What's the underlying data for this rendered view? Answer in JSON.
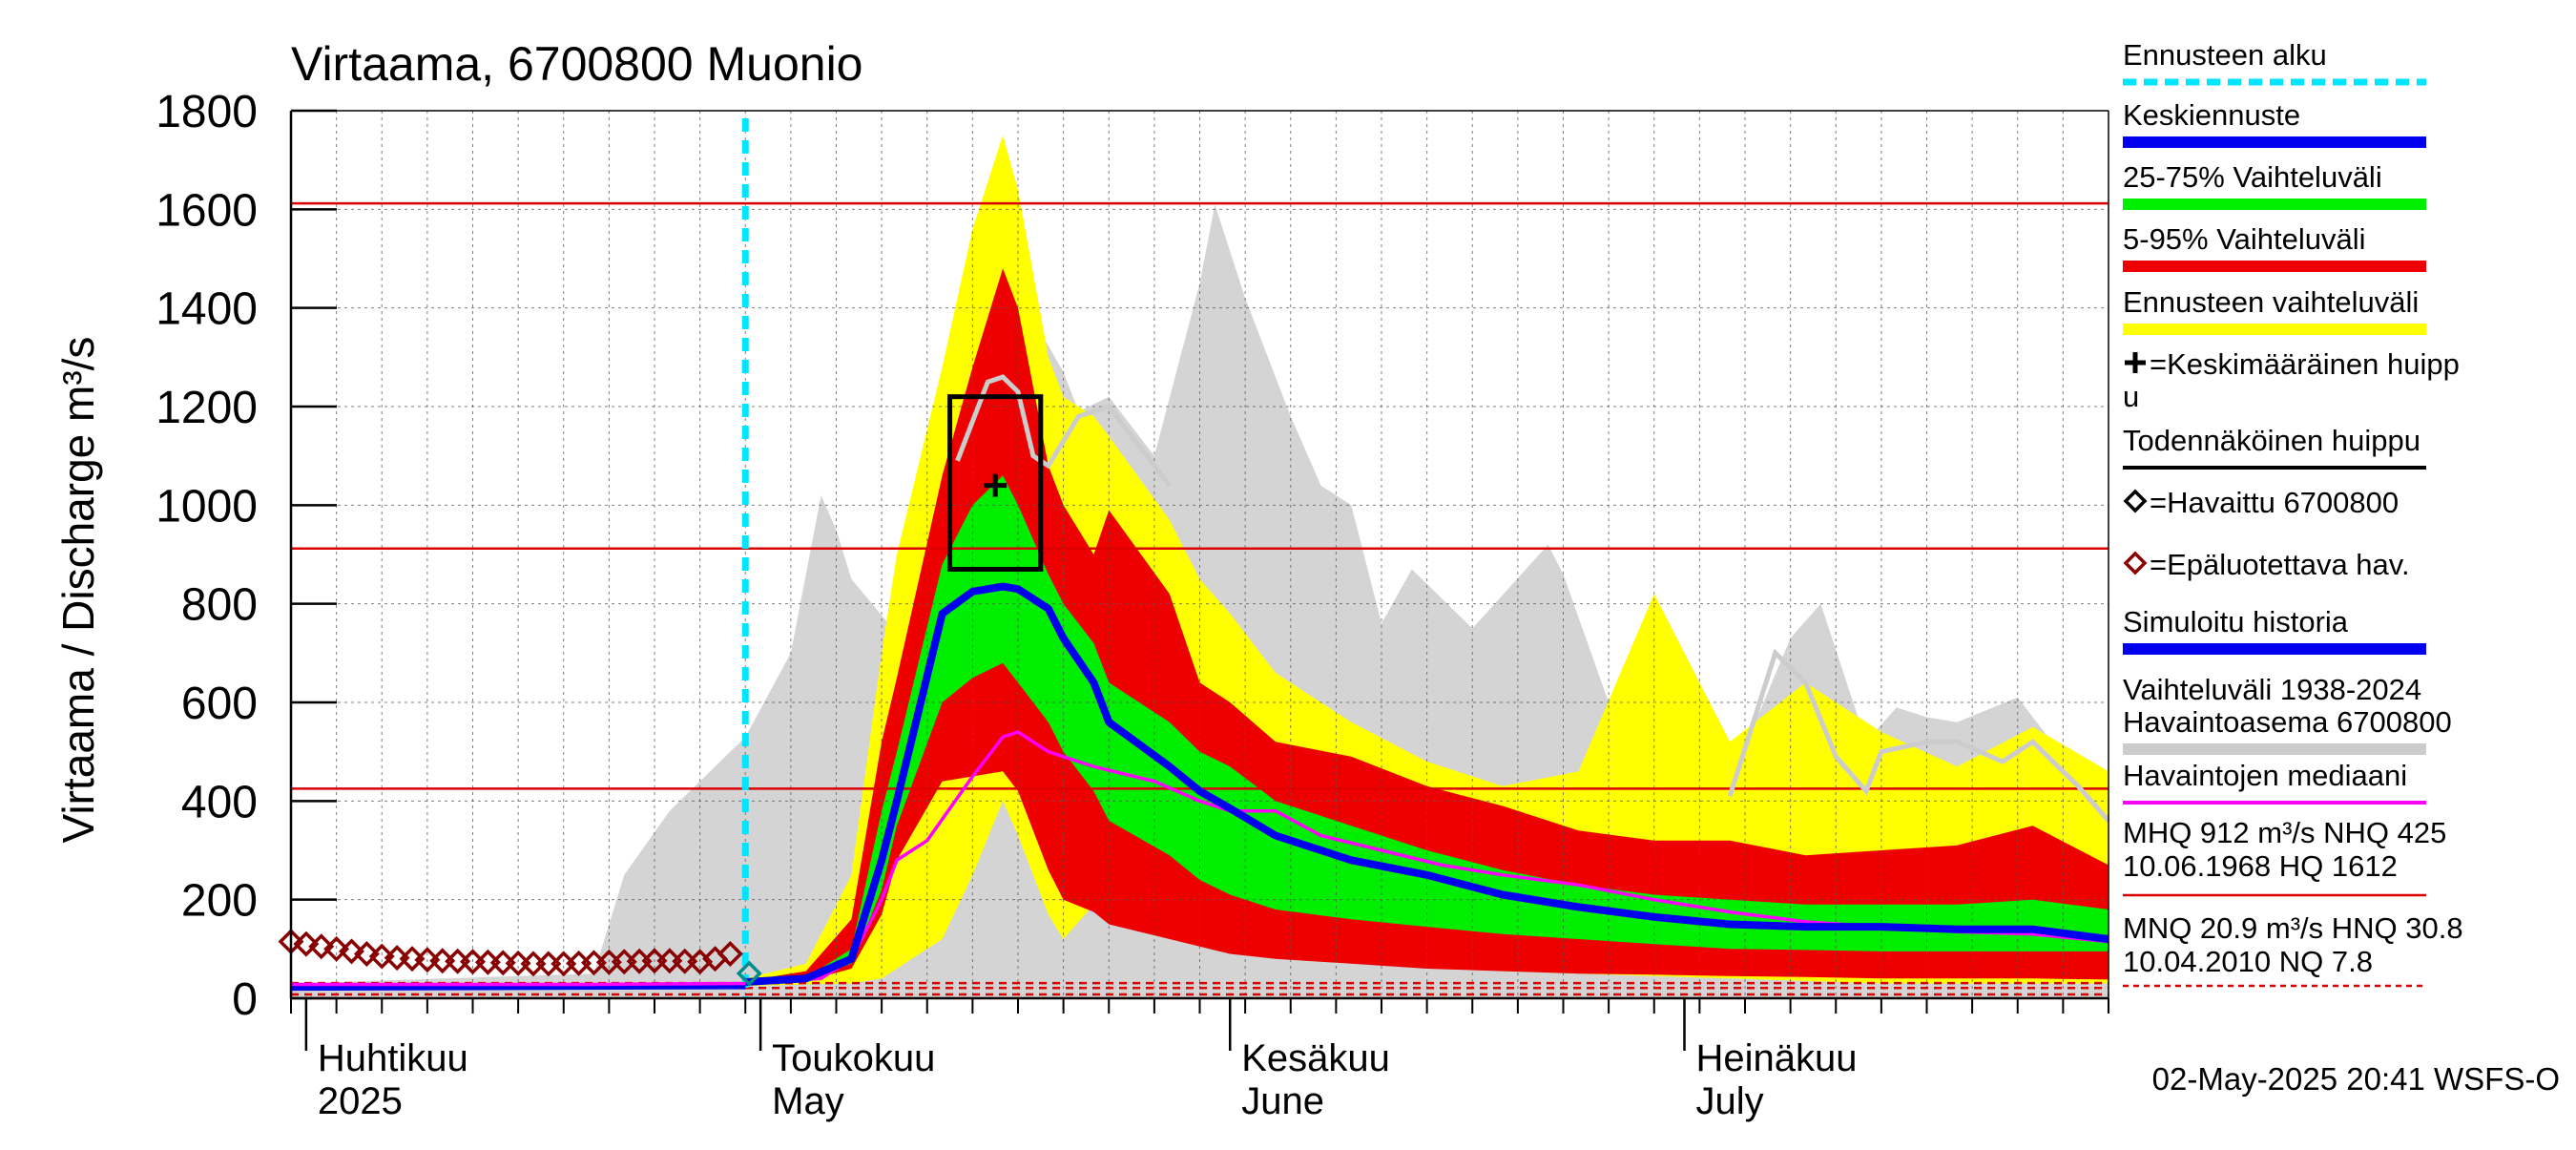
{
  "chart_data": {
    "type": "area",
    "title": "Virtaama, 6700800 Muonio",
    "ylabel": "Virtaama / Discharge   m³/s",
    "ylim": [
      0,
      1800
    ],
    "yticks": [
      0,
      200,
      400,
      600,
      800,
      1000,
      1200,
      1400,
      1600,
      1800
    ],
    "x_unit": "days since 2025-03-31",
    "xlim": [
      0,
      120
    ],
    "month_starts": [
      1,
      31,
      62,
      92
    ],
    "month_labels": [
      {
        "fi": "Huhtikuu",
        "en": "2025"
      },
      {
        "fi": "Toukokuu",
        "en": "May"
      },
      {
        "fi": "Kesäkuu",
        "en": "June"
      },
      {
        "fi": "Heinäkuu",
        "en": "July"
      }
    ],
    "forecast_start": 30,
    "reference_lines": [
      {
        "name": "HQ",
        "value": 1612,
        "color": "#dd0000"
      },
      {
        "name": "MHQ",
        "value": 912,
        "color": "#dd0000"
      },
      {
        "name": "NHQ",
        "value": 425,
        "color": "#dd0000"
      },
      {
        "name": "HNQ",
        "value": 30.8,
        "color": "#dd0000",
        "dashed": true
      },
      {
        "name": "MNQ",
        "value": 20.9,
        "color": "#dd0000",
        "dashed": true
      },
      {
        "name": "NQ",
        "value": 7.8,
        "color": "#dd0000",
        "dashed": true
      }
    ],
    "history_range": {
      "name": "Vaihteluväli 1938-2024 Havaintoasema 6700800",
      "color": "#d4d4d4",
      "x": [
        0,
        20,
        22,
        25,
        27,
        30,
        33,
        35,
        36,
        37,
        40,
        42,
        45,
        47,
        48,
        51,
        52,
        54,
        57,
        60,
        61,
        63,
        66,
        68,
        70,
        72,
        74,
        78,
        83,
        84,
        87,
        90,
        92,
        96,
        99,
        101,
        104,
        106,
        108,
        110,
        114,
        118,
        120
      ],
      "upper": [
        30,
        50,
        250,
        380,
        440,
        530,
        700,
        1020,
        950,
        850,
        740,
        920,
        1210,
        1400,
        1430,
        1270,
        1190,
        1220,
        1100,
        1450,
        1610,
        1420,
        1180,
        1040,
        1000,
        760,
        870,
        750,
        920,
        860,
        600,
        470,
        530,
        510,
        730,
        800,
        520,
        590,
        570,
        560,
        610,
        450,
        380
      ],
      "lower": [
        0,
        0,
        0,
        0,
        0,
        0,
        0,
        0,
        0,
        0,
        0,
        0,
        0,
        0,
        0,
        0,
        0,
        0,
        0,
        0,
        0,
        0,
        0,
        0,
        0,
        0,
        0,
        0,
        0,
        0,
        0,
        0,
        0,
        0,
        0,
        0,
        0,
        0,
        0,
        0,
        0,
        0,
        0
      ]
    },
    "x_fc": [
      30,
      34,
      37,
      39,
      40,
      43,
      45,
      47,
      48,
      50,
      51,
      53,
      54,
      58,
      60,
      62,
      65,
      70,
      75,
      80,
      85,
      90,
      95,
      100,
      105,
      110,
      115,
      120
    ],
    "forecast_range": {
      "name": "Ennusteen vaihteluväli",
      "color": "#ffff00",
      "upper": [
        40,
        70,
        250,
        700,
        900,
        1280,
        1560,
        1750,
        1640,
        1300,
        1220,
        1180,
        1140,
        970,
        850,
        780,
        660,
        560,
        480,
        430,
        460,
        820,
        520,
        640,
        540,
        470,
        550,
        460
      ],
      "lower": [
        25,
        28,
        30,
        40,
        60,
        120,
        250,
        400,
        330,
        170,
        120,
        190,
        160,
        140,
        120,
        100,
        85,
        75,
        65,
        55,
        50,
        45,
        40,
        35,
        30,
        30,
        30,
        30
      ]
    },
    "p5_95": {
      "name": "5-95% Vaihteluväli",
      "color": "#ee0000",
      "upper": [
        35,
        55,
        160,
        520,
        650,
        1060,
        1280,
        1480,
        1400,
        1080,
        1000,
        900,
        990,
        820,
        640,
        600,
        520,
        490,
        430,
        390,
        340,
        320,
        320,
        290,
        300,
        310,
        350,
        270
      ],
      "lower": [
        28,
        35,
        60,
        170,
        280,
        440,
        450,
        460,
        420,
        260,
        200,
        175,
        150,
        120,
        105,
        90,
        80,
        70,
        60,
        55,
        50,
        48,
        45,
        43,
        40,
        40,
        40,
        38
      ]
    },
    "p25_75": {
      "name": "25-75% Vaihteluväli",
      "color": "#00ee00",
      "upper": [
        32,
        42,
        100,
        380,
        500,
        880,
        1000,
        1060,
        1000,
        860,
        800,
        720,
        640,
        560,
        500,
        470,
        400,
        350,
        300,
        260,
        230,
        210,
        200,
        190,
        190,
        190,
        200,
        180
      ],
      "lower": [
        30,
        38,
        70,
        220,
        350,
        600,
        650,
        680,
        640,
        560,
        500,
        420,
        360,
        290,
        240,
        210,
        180,
        160,
        145,
        130,
        120,
        110,
        100,
        98,
        95,
        95,
        95,
        95
      ]
    },
    "median_forecast": {
      "name": "Keskiennuste",
      "color": "#0000ee",
      "values": [
        33,
        40,
        80,
        280,
        400,
        780,
        825,
        835,
        830,
        790,
        730,
        640,
        560,
        470,
        420,
        385,
        330,
        280,
        250,
        210,
        185,
        165,
        150,
        145,
        145,
        140,
        140,
        120
      ]
    },
    "probable_peak_curve": {
      "name": "Todennäköinen huippu",
      "color": "#cccccc",
      "x": [
        44,
        46,
        47,
        48,
        49,
        50,
        52,
        54,
        56,
        58
      ],
      "values": [
        1090,
        1250,
        1260,
        1230,
        1100,
        1080,
        1180,
        1200,
        1120,
        1040
      ]
    },
    "history_light_curve": {
      "name": "",
      "color": "#cccccc",
      "x": [
        95,
        98,
        100,
        102,
        104,
        105,
        108,
        110,
        113,
        115,
        118,
        120
      ],
      "values": [
        410,
        700,
        640,
        490,
        420,
        500,
        520,
        520,
        480,
        520,
        430,
        360
      ]
    },
    "peak_box": {
      "x0": 43.5,
      "x1": 49.5,
      "y_low": 870,
      "y_high": 1220,
      "color": "#000000"
    },
    "mean_peak": {
      "name": "Keskimääräinen huippu",
      "x": 46.5,
      "y": 1040
    },
    "observed_median": {
      "name": "Havaintojen mediaani",
      "color": "#ff00ff",
      "x": [
        0,
        20,
        30,
        35,
        37,
        39,
        40,
        41,
        42,
        45,
        47,
        48,
        50,
        53,
        57,
        60,
        62,
        65,
        68,
        72,
        76,
        80,
        85,
        90,
        95,
        100,
        105,
        110,
        115,
        120
      ],
      "values": [
        28,
        28,
        30,
        40,
        80,
        200,
        280,
        300,
        320,
        450,
        530,
        540,
        500,
        470,
        440,
        400,
        380,
        380,
        330,
        300,
        270,
        250,
        230,
        200,
        175,
        155,
        145,
        135,
        130,
        115
      ]
    },
    "simulated_history": {
      "name": "Simuloitu historia",
      "color": "#0000ee",
      "x": [
        0,
        30
      ],
      "values": [
        22,
        25
      ]
    },
    "unreliable_obs": {
      "name": "=Epäluotettava hav.",
      "color": "#880000",
      "x": [
        0,
        1,
        2,
        3,
        4,
        5,
        6,
        7,
        8,
        9,
        10,
        11,
        12,
        13,
        14,
        15,
        16,
        17,
        18,
        19,
        20,
        21,
        22,
        23,
        24,
        25,
        26,
        27,
        28,
        29
      ],
      "values": [
        115,
        110,
        105,
        100,
        95,
        90,
        85,
        82,
        80,
        78,
        76,
        75,
        74,
        73,
        72,
        71,
        70,
        70,
        70,
        71,
        72,
        73,
        74,
        75,
        76,
        76,
        75,
        74,
        80,
        90
      ]
    },
    "observed": {
      "name": "=Havaittu 6700800",
      "x": [
        30
      ],
      "values": [
        58
      ]
    },
    "legend": [
      {
        "key": "forecast_start",
        "label": "Ennusteen alku",
        "style": "dashed",
        "color": "#00e5ff"
      },
      {
        "key": "median",
        "label": "Keskiennuste",
        "style": "line",
        "color": "#0000ee"
      },
      {
        "key": "p25_75",
        "label": "25-75% Vaihteluväli",
        "style": "line",
        "color": "#00ee00"
      },
      {
        "key": "p5_95",
        "label": "5-95% Vaihteluväli",
        "style": "line",
        "color": "#ee0000"
      },
      {
        "key": "forecast_range",
        "label": "Ennusteen vaihteluväli",
        "style": "line",
        "color": "#ffff00"
      },
      {
        "key": "mean_peak",
        "label": "=Keskimääräinen huipp",
        "label2": "u",
        "style": "plus",
        "color": "#000000"
      },
      {
        "key": "probable_peak",
        "label": "Todennäköinen huippu",
        "style": "thin",
        "color": "#000000"
      },
      {
        "key": "observed",
        "label": "=Havaittu 6700800",
        "style": "diamond",
        "color": "#000000"
      },
      {
        "key": "unreliable",
        "label": "=Epäluotettava hav.",
        "style": "diamond",
        "color": "#880000"
      },
      {
        "key": "simulated",
        "label": "Simuloitu historia",
        "style": "line",
        "color": "#0000ee"
      },
      {
        "key": "history_range",
        "label": "Vaihteluväli 1938-2024",
        "label2": " Havaintoasema 6700800",
        "style": "line",
        "color": "#cccccc"
      },
      {
        "key": "obs_median",
        "label": "Havaintojen mediaani",
        "style": "thin",
        "color": "#ff00ff"
      }
    ],
    "stats": {
      "line1": "MHQ  912 m³/s NHQ  425",
      "line2": "10.06.1968 HQ 1612",
      "line3": "MNQ 20.9 m³/s HNQ 30.8",
      "line4": "10.04.2010 NQ  7.8",
      "line_color": "#dd0000"
    },
    "timestamp": "02-May-2025 20:41 WSFS-O"
  }
}
